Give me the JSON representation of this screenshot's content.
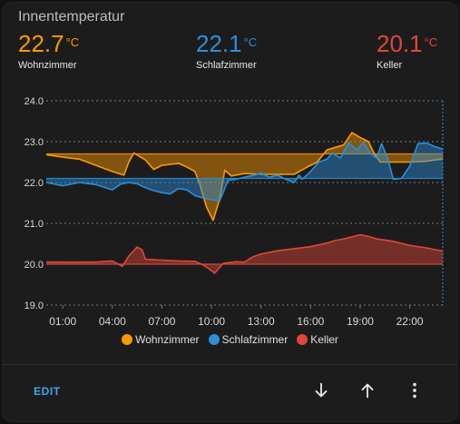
{
  "card": {
    "title": "Innentemperatur"
  },
  "entities": [
    {
      "value": "22.7",
      "unit": "°C",
      "name": "Wohnzimmer",
      "color": "#ff9800"
    },
    {
      "value": "22.1",
      "unit": "°C",
      "name": "Schlafzimmer",
      "color": "#2b8fdb"
    },
    {
      "value": "20.1",
      "unit": "°C",
      "name": "Keller",
      "color": "#e0473a"
    }
  ],
  "chart_data": {
    "type": "line",
    "ylim": [
      19.0,
      24.0
    ],
    "y_ticks": [
      "24.0",
      "23.0",
      "22.0",
      "21.0",
      "20.0",
      "19.0"
    ],
    "x_ticks": [
      "01:00",
      "04:00",
      "07:00",
      "10:00",
      "13:00",
      "16:00",
      "19:00",
      "22:00"
    ],
    "xlim": [
      0.0,
      24.0
    ],
    "grid": true,
    "legend_position": "bottom",
    "series": [
      {
        "name": "Wohnzimmer",
        "color": "#ff9800",
        "baseline": 22.7,
        "points": [
          [
            0,
            22.68
          ],
          [
            1,
            22.62
          ],
          [
            2,
            22.57
          ],
          [
            3,
            22.42
          ],
          [
            4,
            22.27
          ],
          [
            4.7,
            22.18
          ],
          [
            5,
            22.5
          ],
          [
            5.3,
            22.72
          ],
          [
            6,
            22.55
          ],
          [
            6.5,
            22.32
          ],
          [
            7,
            22.42
          ],
          [
            8,
            22.47
          ],
          [
            8.5,
            22.38
          ],
          [
            9,
            22.27
          ],
          [
            9.3,
            21.95
          ],
          [
            9.7,
            21.4
          ],
          [
            10.1,
            21.07
          ],
          [
            10.5,
            21.6
          ],
          [
            10.8,
            22.3
          ],
          [
            11.2,
            22.16
          ],
          [
            12,
            22.22
          ],
          [
            13,
            22.2
          ],
          [
            14,
            22.2
          ],
          [
            15,
            22.2
          ],
          [
            15.8,
            22.38
          ],
          [
            16.4,
            22.5
          ],
          [
            17,
            22.8
          ],
          [
            17.5,
            22.86
          ],
          [
            18,
            22.92
          ],
          [
            18.5,
            23.22
          ],
          [
            19,
            23.1
          ],
          [
            19.5,
            23.0
          ],
          [
            19.8,
            22.75
          ],
          [
            20.2,
            22.5
          ],
          [
            21,
            22.5
          ],
          [
            22,
            22.5
          ],
          [
            23,
            22.52
          ],
          [
            24,
            22.58
          ]
        ]
      },
      {
        "name": "Schlafzimmer",
        "color": "#2b8fdb",
        "baseline": 22.1,
        "points": [
          [
            0,
            22.0
          ],
          [
            1,
            21.92
          ],
          [
            2,
            22.0
          ],
          [
            3,
            21.95
          ],
          [
            4,
            21.82
          ],
          [
            4.5,
            21.96
          ],
          [
            5,
            22.0
          ],
          [
            5.5,
            21.97
          ],
          [
            6,
            21.87
          ],
          [
            6.5,
            21.8
          ],
          [
            7,
            21.75
          ],
          [
            7.5,
            21.72
          ],
          [
            8,
            21.85
          ],
          [
            8.5,
            21.82
          ],
          [
            9,
            21.68
          ],
          [
            9.5,
            21.62
          ],
          [
            10,
            21.58
          ],
          [
            10.5,
            21.55
          ],
          [
            11,
            22.05
          ],
          [
            11.5,
            22.08
          ],
          [
            12,
            22.13
          ],
          [
            12.5,
            22.17
          ],
          [
            13,
            22.23
          ],
          [
            13.5,
            22.13
          ],
          [
            14,
            22.18
          ],
          [
            14.5,
            22.08
          ],
          [
            15,
            22.0
          ],
          [
            15.3,
            22.18
          ],
          [
            15.5,
            22.08
          ],
          [
            16,
            22.27
          ],
          [
            16.5,
            22.5
          ],
          [
            17,
            22.57
          ],
          [
            17.3,
            22.72
          ],
          [
            17.8,
            22.6
          ],
          [
            18.3,
            22.97
          ],
          [
            18.8,
            22.8
          ],
          [
            19.2,
            22.98
          ],
          [
            19.6,
            22.72
          ],
          [
            20,
            22.6
          ],
          [
            20.3,
            22.95
          ],
          [
            20.7,
            22.55
          ],
          [
            21,
            22.08
          ],
          [
            21.5,
            22.1
          ],
          [
            22,
            22.4
          ],
          [
            22.5,
            22.95
          ],
          [
            23,
            22.97
          ],
          [
            23.5,
            22.88
          ],
          [
            24,
            22.82
          ]
        ]
      },
      {
        "name": "Keller",
        "color": "#e0473a",
        "baseline": 20.0,
        "points": [
          [
            0,
            20.05
          ],
          [
            1,
            20.05
          ],
          [
            2,
            20.05
          ],
          [
            3,
            20.05
          ],
          [
            4,
            20.08
          ],
          [
            4.6,
            19.95
          ],
          [
            5,
            20.2
          ],
          [
            5.5,
            20.42
          ],
          [
            5.8,
            20.35
          ],
          [
            6,
            20.12
          ],
          [
            7,
            20.1
          ],
          [
            8,
            20.08
          ],
          [
            9,
            20.07
          ],
          [
            9.5,
            19.98
          ],
          [
            9.8,
            19.9
          ],
          [
            10.2,
            19.78
          ],
          [
            10.7,
            20.02
          ],
          [
            11.5,
            20.06
          ],
          [
            12,
            20.05
          ],
          [
            12.5,
            20.18
          ],
          [
            13,
            20.25
          ],
          [
            14,
            20.33
          ],
          [
            15,
            20.38
          ],
          [
            16,
            20.43
          ],
          [
            17,
            20.52
          ],
          [
            17.5,
            20.58
          ],
          [
            18,
            20.62
          ],
          [
            19,
            20.72
          ],
          [
            19.5,
            20.68
          ],
          [
            20,
            20.62
          ],
          [
            21,
            20.56
          ],
          [
            22,
            20.46
          ],
          [
            23,
            20.4
          ],
          [
            24,
            20.32
          ]
        ]
      }
    ]
  },
  "actions": {
    "edit_label": "EDIT",
    "down_icon": "arrow-down-icon",
    "up_icon": "arrow-up-icon",
    "more_icon": "more-vertical-icon"
  }
}
